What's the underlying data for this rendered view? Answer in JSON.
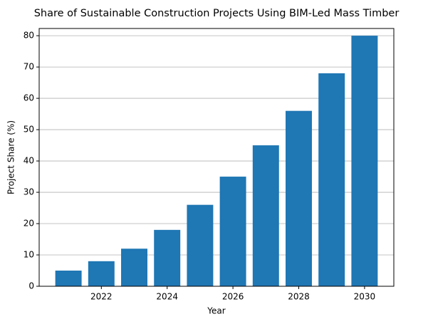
{
  "chart_data": {
    "type": "bar",
    "title": "Share of Sustainable Construction Projects Using BIM-Led Mass Timber",
    "x_label": "Year",
    "y_label": "Project Share (%)",
    "x": [
      2021,
      2022,
      2023,
      2024,
      2025,
      2026,
      2027,
      2028,
      2029,
      2030
    ],
    "values": [
      5,
      8,
      12,
      18,
      26,
      35,
      45,
      56,
      68,
      80
    ],
    "color": "#1f77b4",
    "xlim": [
      2020.11,
      2030.89
    ],
    "xticks": [
      2022,
      2024,
      2026,
      2028,
      2030
    ],
    "ylim": [
      0,
      82.3
    ],
    "yticks": [
      0,
      10,
      20,
      30,
      40,
      50,
      60,
      70,
      80
    ],
    "grid": true
  }
}
